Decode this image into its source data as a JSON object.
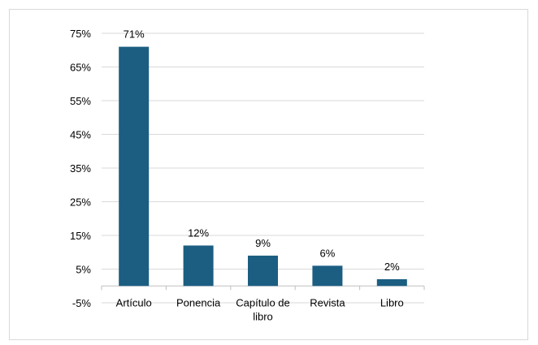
{
  "chart_data": {
    "type": "bar",
    "categories": [
      "Artículo",
      "Ponencia",
      "Capítulo de libro",
      "Revista",
      "Libro"
    ],
    "values": [
      71,
      12,
      9,
      6,
      2
    ],
    "data_labels": [
      "71%",
      "12%",
      "9%",
      "6%",
      "2%"
    ],
    "ylim": [
      -5,
      75
    ],
    "yticks": [
      -5,
      5,
      15,
      25,
      35,
      45,
      55,
      65,
      75
    ],
    "ytick_labels": [
      "-5%",
      "5%",
      "15%",
      "25%",
      "35%",
      "45%",
      "55%",
      "65%",
      "75%"
    ],
    "bar_color": "#1b5e82",
    "grid": true,
    "legend": "none"
  }
}
